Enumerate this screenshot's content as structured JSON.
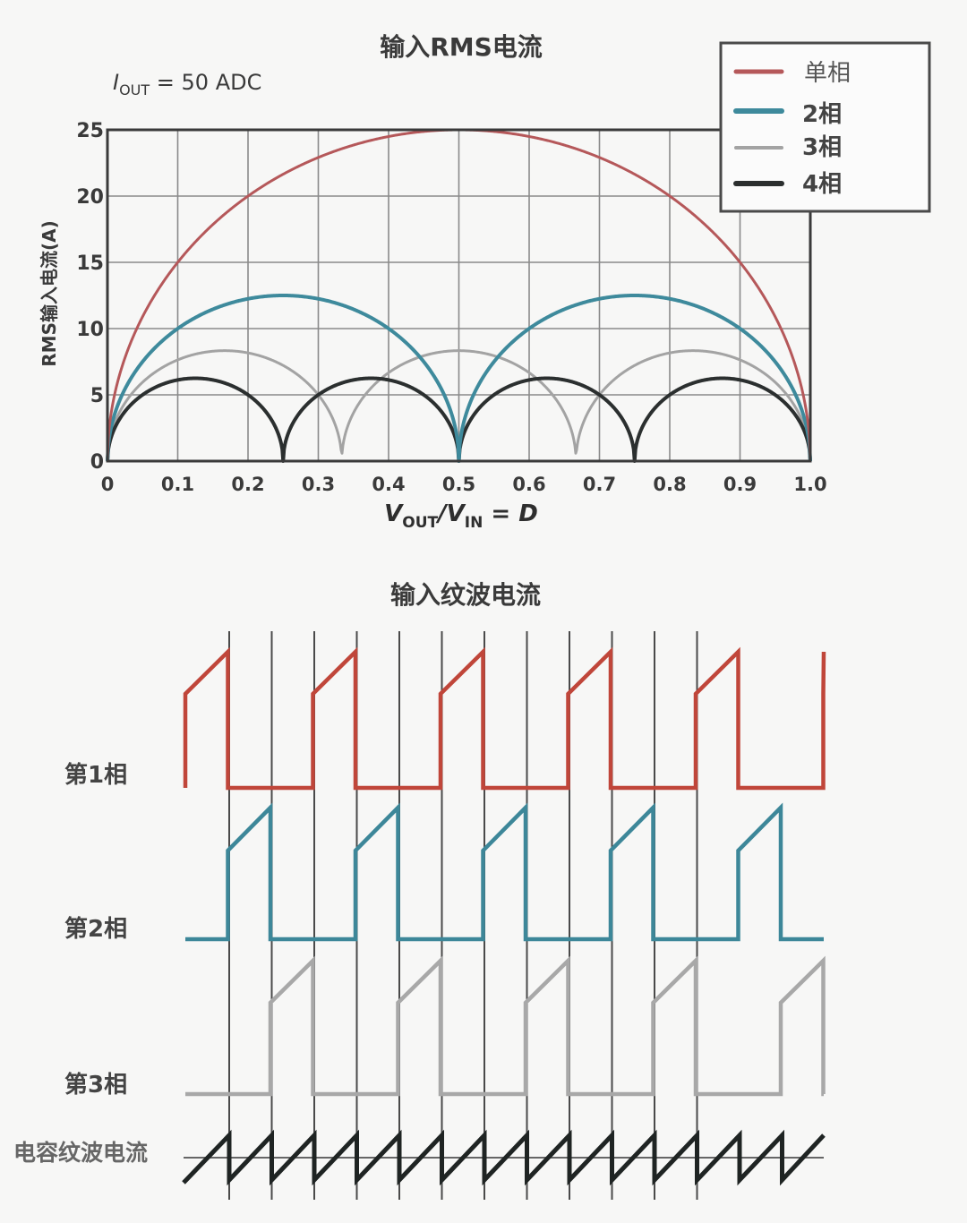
{
  "chart_data": [
    {
      "type": "line",
      "title": "输入RMS电流",
      "annotation": "I_OUT = 50 ADC",
      "annotation_parts": {
        "symbol": "I",
        "subscript": "OUT",
        "rest": " = 50 ADC"
      },
      "xlabel": "V_OUT / V_IN = D",
      "xlabel_parts": {
        "v1": "V",
        "sub1": "OUT",
        "sep": "/",
        "v2": "V",
        "sub2": "IN",
        "rest": " = D"
      },
      "ylabel": "RMS输入电流(A)",
      "xlim": [
        0,
        1.0
      ],
      "ylim": [
        0,
        25
      ],
      "xticks": [
        "0",
        "0.1",
        "0.2",
        "0.3",
        "0.4",
        "0.5",
        "0.6",
        "0.7",
        "0.8",
        "0.9",
        "1.0"
      ],
      "yticks": [
        "0",
        "5",
        "10",
        "15",
        "20",
        "25"
      ],
      "grid": true,
      "legend_position": "top-right",
      "iout": 50,
      "series": [
        {
          "name": "单相",
          "phases": 1,
          "color": "#b5585a",
          "width": 3,
          "x": [
            0,
            0.1,
            0.2,
            0.3,
            0.4,
            0.5,
            0.6,
            0.7,
            0.8,
            0.9,
            1.0
          ],
          "values": [
            0,
            15.0,
            20.0,
            22.9,
            24.5,
            25.0,
            24.5,
            22.9,
            20.0,
            15.0,
            0
          ]
        },
        {
          "name": "2相",
          "phases": 2,
          "color": "#3e8a9c",
          "width": 4,
          "x": [
            0,
            0.125,
            0.25,
            0.375,
            0.5,
            0.625,
            0.75,
            0.875,
            1.0
          ],
          "values": [
            0,
            10.8,
            12.5,
            10.8,
            0,
            10.8,
            12.5,
            10.8,
            0
          ]
        },
        {
          "name": "3相",
          "phases": 3,
          "color": "#a3a3a3",
          "width": 3,
          "x": [
            0,
            0.1667,
            0.3333,
            0.5,
            0.6667,
            0.8333,
            1.0
          ],
          "values": [
            0,
            8.33,
            0,
            8.33,
            0,
            8.33,
            0
          ]
        },
        {
          "name": "4相",
          "phases": 4,
          "color": "#2b2f2f",
          "width": 4,
          "x": [
            0,
            0.125,
            0.25,
            0.375,
            0.5,
            0.625,
            0.75,
            0.875,
            1.0
          ],
          "values": [
            0,
            6.25,
            0,
            6.25,
            0,
            6.25,
            0,
            6.25,
            0
          ]
        }
      ]
    },
    {
      "type": "line",
      "title": "输入纹波电流",
      "description": "3-phase interleaved input current waveforms and resulting capacitor ripple current",
      "slot_count": 12,
      "series": [
        {
          "name": "第1相",
          "color": "#c0463a",
          "start_slot": 0
        },
        {
          "name": "第2相",
          "color": "#3d8799",
          "start_slot": 1
        },
        {
          "name": "第3相",
          "color": "#a8a8a8",
          "start_slot": 2
        },
        {
          "name": "电容纹波电流",
          "color": "#1f2423",
          "type": "sawtooth"
        }
      ]
    }
  ],
  "legend": {
    "items": [
      {
        "label": "单相",
        "color": "#b5585a"
      },
      {
        "label": "2相",
        "color": "#3e8a9c"
      },
      {
        "label": "3相",
        "color": "#a3a3a3"
      },
      {
        "label": "4相",
        "color": "#2b2f2f"
      }
    ]
  },
  "labels": {
    "phase1": "第1相",
    "phase2": "第2相",
    "phase3": "第3相",
    "cap_ripple": "电容纹波电流"
  }
}
